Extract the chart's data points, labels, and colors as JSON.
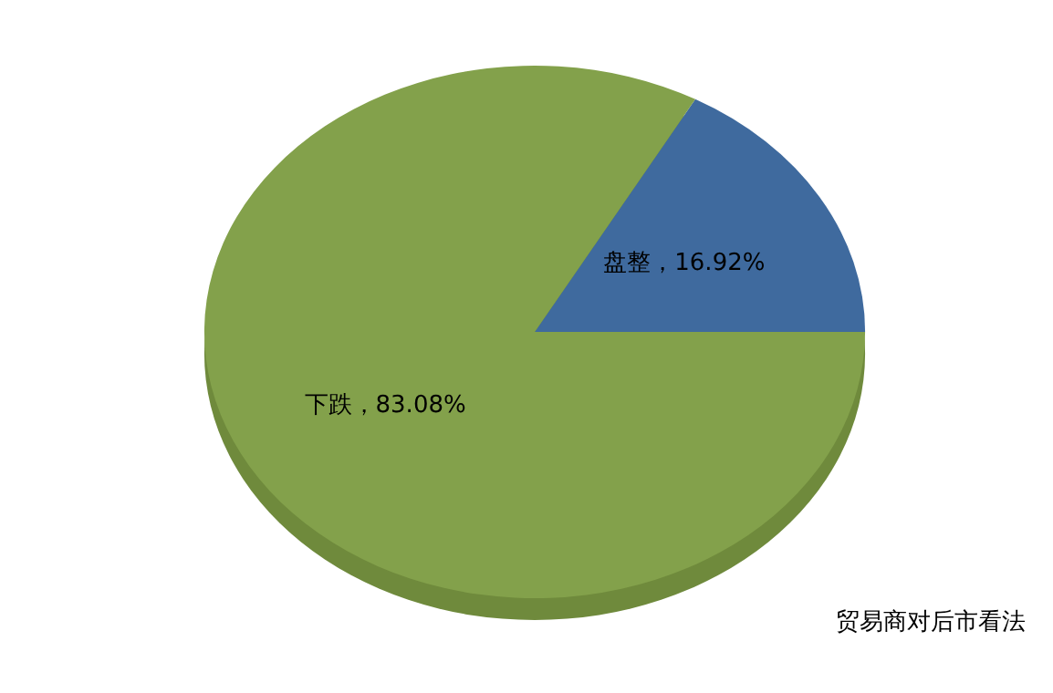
{
  "chart_data": {
    "type": "pie",
    "categories": [
      "盘整",
      "下跌"
    ],
    "values": [
      16.92,
      83.08
    ],
    "colors": [
      "#3f6a9e",
      "#83a14b"
    ],
    "value_labels": [
      "，16.92%",
      "，83.08%"
    ],
    "annotations": [
      "贸易商对后市看法"
    ]
  }
}
